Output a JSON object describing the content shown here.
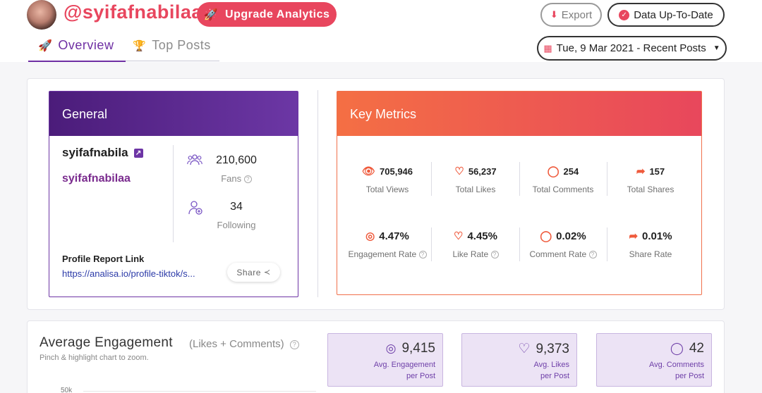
{
  "header": {
    "username": "@syifafnabilaa",
    "upgrade_label": "Upgrade Analytics",
    "export_label": "Export",
    "status_label": "Data Up-To-Date",
    "date_label": "Tue, 9 Mar 2021 - Recent Posts"
  },
  "tabs": [
    {
      "label": "Overview"
    },
    {
      "label": "Top Posts"
    }
  ],
  "general": {
    "title": "General",
    "name": "syifafnabila",
    "handle": "syifafnabilaa",
    "fans_value": "210,600",
    "fans_label": "Fans",
    "following_value": "34",
    "following_label": "Following",
    "report_title": "Profile Report Link",
    "report_link": "https://analisa.io/profile-tiktok/s...",
    "share_label": "Share"
  },
  "key_metrics": {
    "title": "Key Metrics",
    "items": [
      {
        "value": "705,946",
        "label": "Total Views"
      },
      {
        "value": "56,237",
        "label": "Total Likes"
      },
      {
        "value": "254",
        "label": "Total Comments"
      },
      {
        "value": "157",
        "label": "Total Shares"
      },
      {
        "value": "4.47%",
        "label": "Engagement Rate"
      },
      {
        "value": "4.45%",
        "label": "Like Rate"
      },
      {
        "value": "0.02%",
        "label": "Comment Rate"
      },
      {
        "value": "0.01%",
        "label": "Share Rate"
      }
    ]
  },
  "average_engagement": {
    "title": "Average Engagement",
    "subtitle": "(Likes + Comments)",
    "hint": "Pinch & highlight chart to zoom.",
    "y_tick": "50k",
    "boxes": [
      {
        "value": "9,415",
        "label_line1": "Avg. Engagement",
        "label_line2": "per Post"
      },
      {
        "value": "9,373",
        "label_line1": "Avg. Likes",
        "label_line2": "per Post"
      },
      {
        "value": "42",
        "label_line1": "Avg. Comments",
        "label_line2": "per Post"
      }
    ]
  },
  "colors": {
    "brand_red": "#e8465e",
    "brand_purple": "#6e2fa3",
    "metrics_orange": "#f46f44"
  }
}
